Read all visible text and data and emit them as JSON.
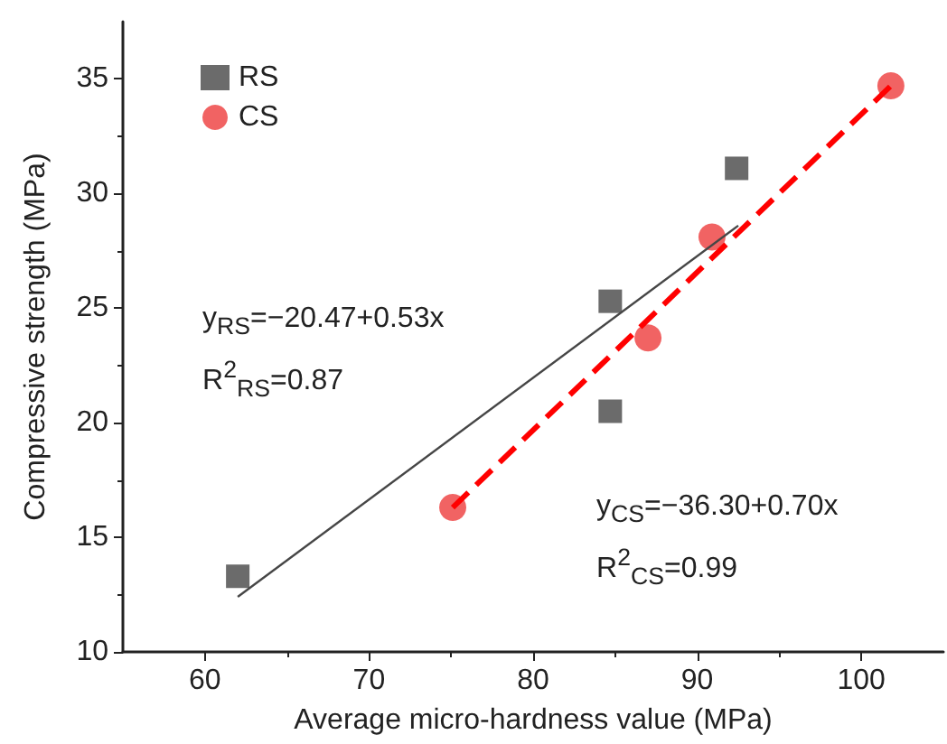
{
  "chart_data": {
    "type": "scatter",
    "xlabel": "Average micro-hardness value (MPa)",
    "ylabel": "Compressive strength (MPa)",
    "xlim": [
      55,
      105
    ],
    "xticks": [
      60,
      70,
      80,
      90,
      100
    ],
    "ylim": [
      10,
      37.5
    ],
    "yticks": [
      10,
      15,
      20,
      25,
      30,
      35
    ],
    "grid": false,
    "legend": "top left",
    "series": [
      {
        "name": "RS",
        "marker": "square",
        "color": "#464646",
        "x": [
          62,
          84.7,
          84.7,
          92.4
        ],
        "values": [
          13.3,
          25.3,
          20.5,
          31.1
        ]
      },
      {
        "name": "CS",
        "marker": "circle",
        "color": "#ee3c3c",
        "x": [
          75.1,
          87.0,
          90.9,
          101.8
        ],
        "values": [
          16.3,
          23.7,
          28.1,
          34.7
        ]
      },
      {
        "type": "line",
        "line_style": "solid",
        "marker": "none",
        "color": "#464646",
        "x": [
          62,
          92.5
        ],
        "values": [
          12.4,
          28.6
        ]
      },
      {
        "type": "line",
        "line_style": "dashed",
        "marker": "none",
        "color": "#ff0000",
        "x": [
          75.1,
          101.8
        ],
        "values": [
          16.3,
          34.7
        ]
      }
    ],
    "annotations": [
      "y$_{RS}$=−20.47+0.53x",
      "R$^{2}$$_{RS}$=0.87",
      "y$_{CS}$=−36.30+0.70x",
      "R$^{2}$$_{CS}$=0.99"
    ]
  }
}
